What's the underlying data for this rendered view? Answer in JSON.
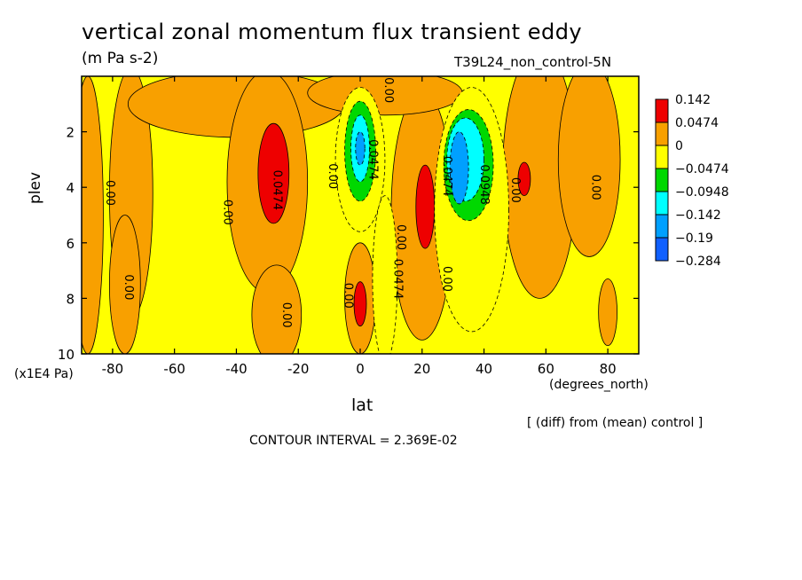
{
  "title": "vertical zonal momentum flux transient eddy",
  "units": "(m Pa s-2)",
  "run_label": "T39L24_non_control-5N",
  "diff_note": "[ (diff) from (mean) control ]",
  "contour_interval_text": "CONTOUR INTERVAL = 2.369E-02",
  "chart_data": {
    "type": "heatmap",
    "title": "vertical zonal momentum flux transient eddy",
    "xlabel": "lat",
    "x_units": "(degrees_north)",
    "ylabel": "plev",
    "y_units": "(x1E4 Pa)",
    "xlim": [
      -90,
      90
    ],
    "ylim": [
      10,
      0
    ],
    "x_ticks": [
      -80,
      -60,
      -40,
      -20,
      0,
      20,
      40,
      60,
      80
    ],
    "y_ticks": [
      2,
      4,
      6,
      8,
      10
    ],
    "legend": {
      "placement": "right",
      "levels": [
        "0.142",
        "0.0474",
        "0",
        "−0.0474",
        "−0.0948",
        "−0.142",
        "−0.19",
        "−0.284"
      ],
      "colors": [
        "#ee0000",
        "#f8a000",
        "#ffff00",
        "#00d800",
        "#00ffff",
        "#00a0ff",
        "#1060ff"
      ]
    },
    "contour_labels": [
      {
        "text": "0.00",
        "lat": 8,
        "plev": 0.5
      },
      {
        "text": "0.00",
        "lat": -82,
        "plev": 4.2
      },
      {
        "text": "0.00",
        "lat": -76,
        "plev": 7.6
      },
      {
        "text": "0.00",
        "lat": -44,
        "plev": 4.9
      },
      {
        "text": "0.0474",
        "lat": -28,
        "plev": 4.1
      },
      {
        "text": "0.00",
        "lat": -25,
        "plev": 8.6
      },
      {
        "text": "0.00",
        "lat": -10,
        "plev": 3.6
      },
      {
        "text": "0.0474",
        "lat": 3,
        "plev": 3.0
      },
      {
        "text": "0.00",
        "lat": -5,
        "plev": 7.9
      },
      {
        "text": "0.00",
        "lat": 12,
        "plev": 5.8
      },
      {
        "text": "0.0474",
        "lat": 11,
        "plev": 7.3
      },
      {
        "text": "0.00",
        "lat": 27,
        "plev": 7.3
      },
      {
        "text": "0.0474",
        "lat": 27,
        "plev": 3.6
      },
      {
        "text": "0.0948",
        "lat": 39,
        "plev": 3.9
      },
      {
        "text": "0.00",
        "lat": 49,
        "plev": 4.1
      },
      {
        "text": "0.00",
        "lat": 75,
        "plev": 4.0
      }
    ],
    "regions": [
      {
        "level": "0.0474",
        "cx": -88,
        "cy": 5,
        "rx": 5,
        "ry": 5
      },
      {
        "level": "0.0474",
        "cx": -74,
        "cy": 4.2,
        "rx": 7,
        "ry": 4.5
      },
      {
        "level": "0.0474",
        "cx": -76,
        "cy": 7.5,
        "rx": 5,
        "ry": 2.5
      },
      {
        "level": "0.0474",
        "cx": -40,
        "cy": 1.0,
        "rx": 35,
        "ry": 1.2
      },
      {
        "level": "0.0474",
        "cx": -30,
        "cy": 3.8,
        "rx": 13,
        "ry": 4.0
      },
      {
        "level": "0.0474",
        "cx": -27,
        "cy": 8.6,
        "rx": 8,
        "ry": 1.8
      },
      {
        "level": "0.0474",
        "cx": 0,
        "cy": 8.0,
        "rx": 5,
        "ry": 2.0
      },
      {
        "level": "0.0474",
        "cx": 20,
        "cy": 5.0,
        "rx": 10,
        "ry": 4.5
      },
      {
        "level": "0.0474",
        "cx": 8,
        "cy": 0.6,
        "rx": 25,
        "ry": 0.8
      },
      {
        "level": "0.0474",
        "cx": 58,
        "cy": 3.5,
        "rx": 12,
        "ry": 4.5
      },
      {
        "level": "0.0474",
        "cx": 74,
        "cy": 3.0,
        "rx": 10,
        "ry": 3.5
      },
      {
        "level": "0.0474",
        "cx": 80,
        "cy": 8.5,
        "rx": 3,
        "ry": 1.2
      },
      {
        "level": "0.142",
        "cx": -28,
        "cy": 3.5,
        "rx": 5,
        "ry": 1.8
      },
      {
        "level": "0.142",
        "cx": 21,
        "cy": 4.7,
        "rx": 3,
        "ry": 1.5
      },
      {
        "level": "0.142",
        "cx": 0,
        "cy": 8.2,
        "rx": 2,
        "ry": 0.8
      },
      {
        "level": "0.142",
        "cx": 53,
        "cy": 3.7,
        "rx": 2,
        "ry": 0.6
      },
      {
        "level": "−0.0474",
        "cx": 0,
        "cy": 3.0,
        "rx": 8,
        "ry": 2.6
      },
      {
        "level": "−0.0474",
        "cx": 8,
        "cy": 7.3,
        "rx": 4,
        "ry": 3.0
      },
      {
        "level": "−0.0474",
        "cx": 36,
        "cy": 4.8,
        "rx": 12,
        "ry": 4.4
      },
      {
        "level": "−0.0948",
        "cx": 0,
        "cy": 2.7,
        "rx": 5,
        "ry": 1.8
      },
      {
        "level": "−0.0948",
        "cx": 35,
        "cy": 3.2,
        "rx": 8,
        "ry": 2.0
      },
      {
        "level": "−0.142",
        "cx": 0,
        "cy": 2.6,
        "rx": 3,
        "ry": 1.2
      },
      {
        "level": "−0.142",
        "cx": 34,
        "cy": 3.0,
        "rx": 6,
        "ry": 1.5
      },
      {
        "level": "−0.19",
        "cx": 0,
        "cy": 2.6,
        "rx": 1.5,
        "ry": 0.6
      },
      {
        "level": "−0.19",
        "cx": 32,
        "cy": 3.3,
        "rx": 3,
        "ry": 1.3
      }
    ]
  }
}
